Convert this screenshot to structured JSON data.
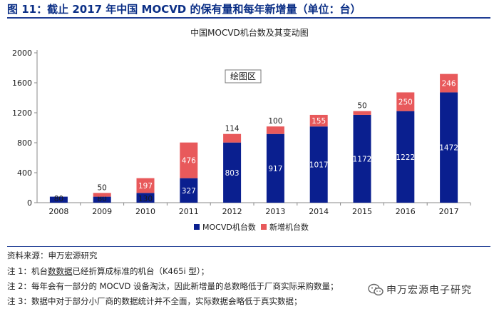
{
  "figure": {
    "title": "图 11：截止 2017 年中国 MOCVD 的保有量和每年新增量（单位：台）"
  },
  "chart_data": {
    "type": "bar",
    "stacked": true,
    "title": "中国MOCVD机台数及其变动图",
    "plot_area_label": "绘图区",
    "categories": [
      "2008",
      "2009",
      "2010",
      "2011",
      "2012",
      "2013",
      "2014",
      "2015",
      "2016",
      "2017"
    ],
    "series": [
      {
        "name": "MOCVD机台数",
        "color": "#0a1f8f",
        "label_color": "#1a1a1a",
        "values": [
          80,
          80,
          130,
          327,
          803,
          917,
          1017,
          1172,
          1222,
          1472
        ]
      },
      {
        "name": "新增机台数",
        "color": "#e8595b",
        "label_color": "#1a1a1a",
        "values": [
          null,
          50,
          197,
          476,
          114,
          100,
          155,
          50,
          250,
          246
        ]
      }
    ],
    "series_label_colors": {
      "base_inside": "#ffffff",
      "base_outside": "#1a1a1a",
      "added_inside": "#ffffff",
      "added_outside": "#1a1a1a"
    },
    "ylim": [
      0,
      2000
    ],
    "yticks": [
      0,
      400,
      800,
      1200,
      1600,
      2000
    ],
    "grid": false,
    "legend_position": "bottom"
  },
  "source": "资料来源：申万宏源研究",
  "notes": [
    {
      "prefix": "注 1：机台",
      "underlined": "数数据",
      "suffix": "已经折算成标准的机台（K465i 型）；"
    },
    {
      "prefix": "注 2：每年会有一部分的 MOCVD 设备淘汰，因此新增量的总数略低于厂商实际采购数量；",
      "underlined": "",
      "suffix": ""
    },
    {
      "prefix": "注 3：数据中对于部分小厂商的数据统计并不全面，实际数据会略低于真实数据；",
      "underlined": "",
      "suffix": ""
    }
  ],
  "watermark": {
    "text": "申万宏源电子研究",
    "icon": "wechat-icon"
  }
}
